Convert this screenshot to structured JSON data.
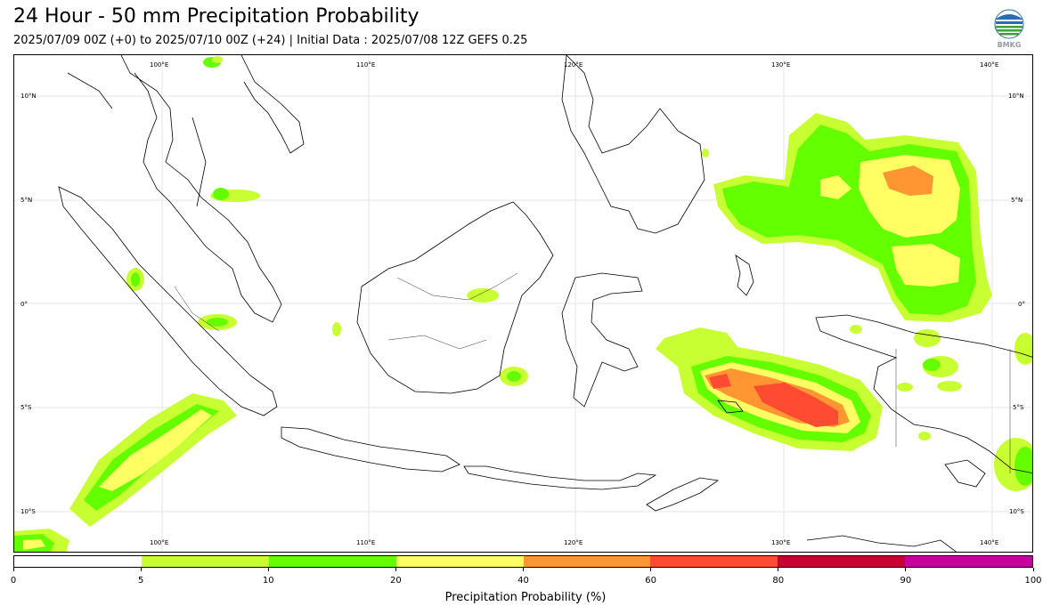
{
  "header": {
    "title": "24 Hour - 50 mm Precipitation Probability",
    "subtitle": "2025/07/09 00Z (+0) to 2025/07/10 00Z (+24) | Initial Data : 2025/07/08 12Z GEFS 0.25",
    "logo_text": "BMKG"
  },
  "map": {
    "top_lon_labels": [
      "100°E",
      "110°E",
      "120°E",
      "130°E",
      "140°E"
    ],
    "bottom_lon_labels": [
      "100°E",
      "110°E",
      "120°E",
      "130°E",
      "140°E"
    ],
    "left_lat_labels": [
      "10°N",
      "5°N",
      "0°",
      "5°S",
      "10°S"
    ],
    "right_lat_labels": [
      "10°N",
      "5°N",
      "0°",
      "5°S",
      "10°S"
    ]
  },
  "colorbar": {
    "label": "Precipitation Probability (%)",
    "ticks": [
      "0",
      "5",
      "10",
      "20",
      "40",
      "60",
      "80",
      "90",
      "100"
    ],
    "colors": [
      "#ffffff",
      "#c8ff32",
      "#64ff00",
      "#ffff64",
      "#ff9632",
      "#ff4b32",
      "#c80032",
      "#c800a0"
    ]
  }
}
